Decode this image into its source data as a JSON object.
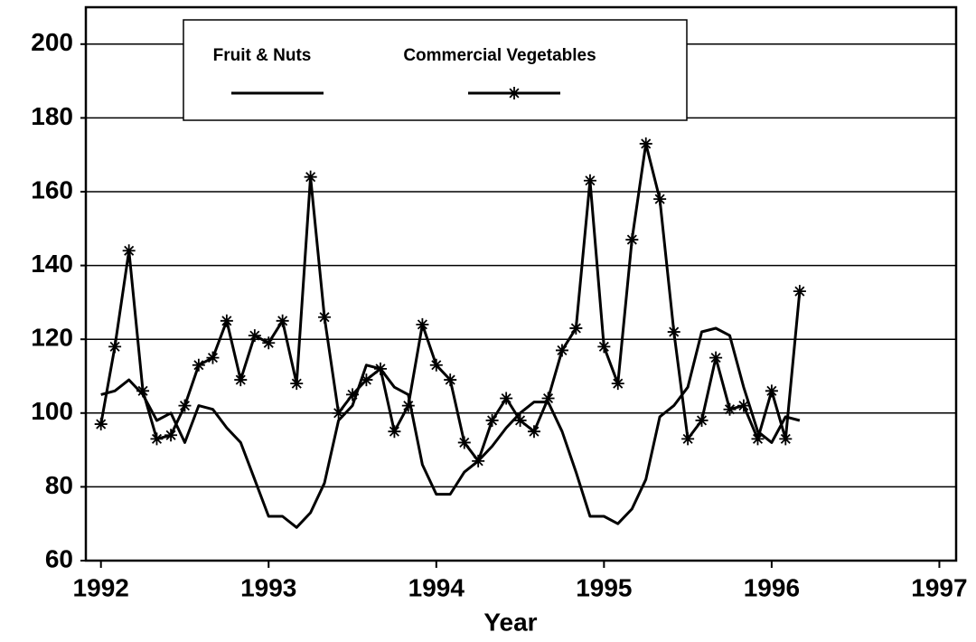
{
  "chart_data": {
    "type": "line",
    "xlabel": "Year",
    "x": [
      1992,
      1992.083,
      1992.167,
      1992.25,
      1992.333,
      1992.417,
      1992.5,
      1992.583,
      1992.667,
      1992.75,
      1992.833,
      1992.917,
      1993,
      1993.083,
      1993.167,
      1993.25,
      1993.333,
      1993.417,
      1993.5,
      1993.583,
      1993.667,
      1993.75,
      1993.833,
      1993.917,
      1994,
      1994.083,
      1994.167,
      1994.25,
      1994.333,
      1994.417,
      1994.5,
      1994.583,
      1994.667,
      1994.75,
      1994.833,
      1994.917,
      1995,
      1995.083,
      1995.167,
      1995.25,
      1995.333,
      1995.417,
      1995.5,
      1995.583,
      1995.667,
      1995.75,
      1995.833,
      1995.917,
      1996,
      1996.083,
      1996.167
    ],
    "series": [
      {
        "name": "Fruit & Nuts",
        "color": "#000000",
        "marker": "none",
        "values": [
          105,
          106,
          109,
          105,
          98,
          100,
          92,
          102,
          101,
          96,
          92,
          82,
          72,
          72,
          69,
          73,
          81,
          98,
          102,
          113,
          112,
          107,
          105,
          86,
          78,
          78,
          84,
          87,
          91,
          96,
          100,
          103,
          103,
          95,
          84,
          72,
          72,
          70,
          74,
          82,
          99,
          102,
          107,
          122,
          123,
          121,
          107,
          95,
          92,
          99,
          98
        ]
      },
      {
        "name": "Commercial Vegetables",
        "color": "#000000",
        "marker": "star",
        "values": [
          97,
          118,
          144,
          106,
          93,
          94,
          102,
          113,
          115,
          125,
          109,
          121,
          119,
          125,
          108,
          164,
          126,
          100,
          105,
          109,
          112,
          95,
          102,
          124,
          113,
          109,
          92,
          87,
          98,
          104,
          98,
          95,
          104,
          117,
          123,
          163,
          118,
          108,
          147,
          173,
          158,
          122,
          93,
          98,
          115,
          101,
          102,
          93,
          106,
          93,
          133
        ]
      }
    ],
    "xlim": [
      1991.91,
      1997.1
    ],
    "xticks": [
      1992,
      1993,
      1994,
      1995,
      1996,
      1997
    ],
    "ylim": [
      60,
      210
    ],
    "yticks": [
      60,
      80,
      100,
      120,
      140,
      160,
      180,
      200
    ],
    "grid": true,
    "legend": "upper center"
  }
}
